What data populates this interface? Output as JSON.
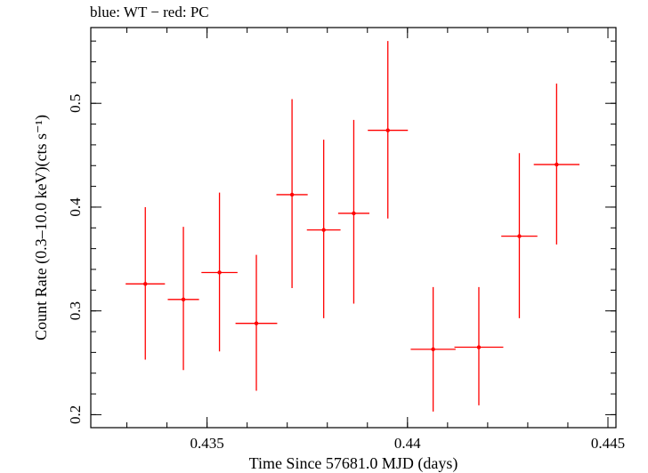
{
  "chart_data": {
    "type": "scatter",
    "title": "blue: WT − red: PC",
    "xlabel": "Time Since 57681.0 MJD (days)",
    "ylabel": "Count Rate (0.3–10.0 keV)(cts s⁻¹)",
    "xlim": [
      0.4321,
      0.4452
    ],
    "ylim": [
      0.1875,
      0.573
    ],
    "x_ticks": [
      "0.435",
      "0.44",
      "0.445"
    ],
    "y_ticks": [
      "0.2",
      "0.3",
      "0.4",
      "0.5"
    ],
    "grid": false,
    "series": [
      {
        "color": "#ff0000",
        "points": [
          {
            "x": 0.43346,
            "y": 0.326,
            "xerr": 0.00049,
            "ylow": 0.253,
            "yhigh": 0.4
          },
          {
            "x": 0.43441,
            "y": 0.311,
            "xerr": 0.00039,
            "ylow": 0.243,
            "yhigh": 0.381
          },
          {
            "x": 0.43531,
            "y": 0.337,
            "xerr": 0.00045,
            "ylow": 0.261,
            "yhigh": 0.414
          },
          {
            "x": 0.43623,
            "y": 0.288,
            "xerr": 0.00052,
            "ylow": 0.223,
            "yhigh": 0.354
          },
          {
            "x": 0.43712,
            "y": 0.412,
            "xerr": 0.00039,
            "ylow": 0.322,
            "yhigh": 0.504
          },
          {
            "x": 0.43791,
            "y": 0.378,
            "xerr": 0.00042,
            "ylow": 0.293,
            "yhigh": 0.465
          },
          {
            "x": 0.43866,
            "y": 0.394,
            "xerr": 0.00039,
            "ylow": 0.307,
            "yhigh": 0.484
          },
          {
            "x": 0.43951,
            "y": 0.474,
            "xerr": 0.0005,
            "ylow": 0.389,
            "yhigh": 0.56
          },
          {
            "x": 0.44064,
            "y": 0.263,
            "xerr": 0.00056,
            "ylow": 0.203,
            "yhigh": 0.323
          },
          {
            "x": 0.44178,
            "y": 0.265,
            "xerr": 0.00061,
            "ylow": 0.209,
            "yhigh": 0.323
          },
          {
            "x": 0.44279,
            "y": 0.372,
            "xerr": 0.00045,
            "ylow": 0.293,
            "yhigh": 0.452
          },
          {
            "x": 0.44372,
            "y": 0.441,
            "xerr": 0.00057,
            "ylow": 0.364,
            "yhigh": 0.519
          }
        ]
      }
    ]
  }
}
